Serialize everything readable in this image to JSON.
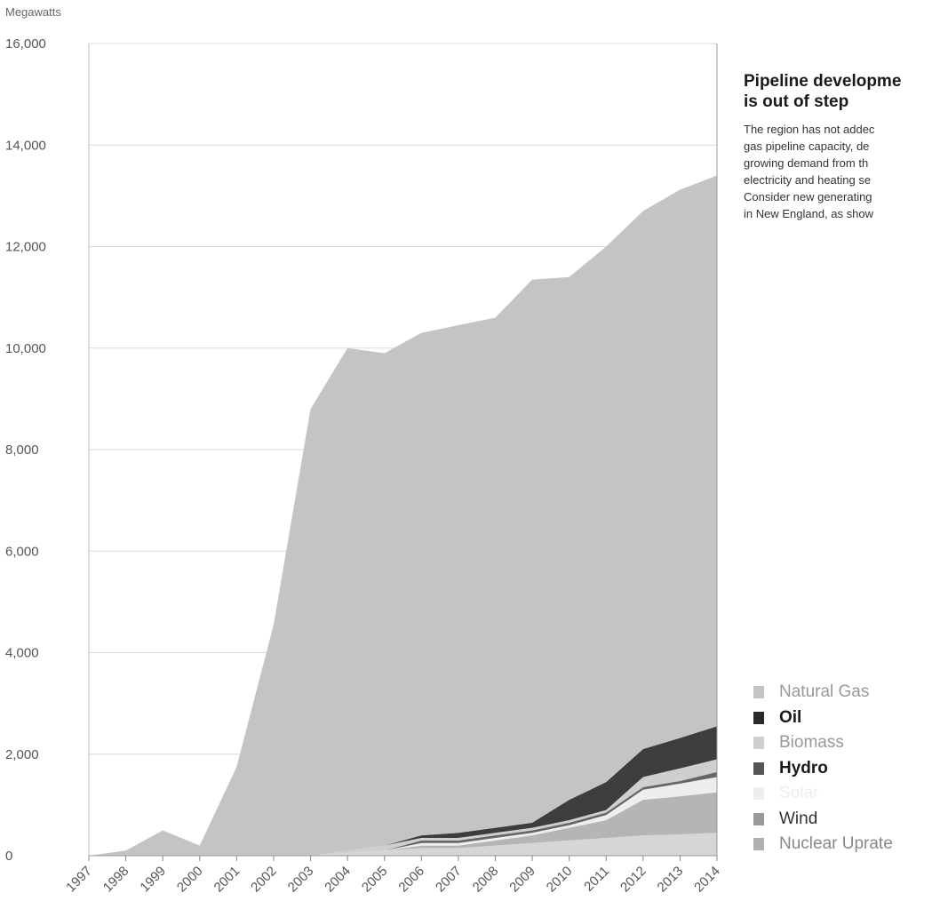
{
  "chart_data": {
    "type": "area",
    "stacked": true,
    "ylabel": "Megawatts",
    "ylim": [
      0,
      16000
    ],
    "yticks": [
      0,
      2000,
      4000,
      6000,
      8000,
      10000,
      12000,
      14000,
      16000
    ],
    "ytick_labels": [
      "0",
      "2,000",
      "4,000",
      "6,000",
      "8,000",
      "10,000",
      "12,000",
      "14,000",
      "16,000"
    ],
    "grid": true,
    "x": [
      "1997",
      "1998",
      "1999",
      "2000",
      "2001",
      "2002",
      "2003",
      "2004",
      "2005",
      "2006",
      "2007",
      "2008",
      "2009",
      "2010",
      "2011",
      "2012",
      "2013",
      "2014"
    ],
    "legend_position": "right",
    "series": [
      {
        "name": "Nuclear Uprate",
        "color": "#d6d6d6",
        "values": [
          0,
          0,
          0,
          0,
          0,
          0,
          0,
          50,
          100,
          150,
          150,
          200,
          250,
          300,
          350,
          400,
          420,
          450
        ]
      },
      {
        "name": "Wind",
        "color": "#b5b5b5",
        "values": [
          0,
          0,
          0,
          0,
          0,
          0,
          0,
          0,
          0,
          50,
          50,
          100,
          150,
          250,
          350,
          700,
          750,
          800
        ]
      },
      {
        "name": "Solar",
        "color": "#eeeeee",
        "values": [
          0,
          0,
          0,
          0,
          0,
          0,
          0,
          0,
          0,
          50,
          50,
          50,
          50,
          50,
          100,
          200,
          250,
          300
        ]
      },
      {
        "name": "Hydro",
        "color": "#666666",
        "values": [
          0,
          0,
          0,
          0,
          0,
          0,
          0,
          0,
          0,
          50,
          50,
          50,
          50,
          50,
          50,
          50,
          50,
          100
        ]
      },
      {
        "name": "Biomass",
        "color": "#cfcfcf",
        "values": [
          0,
          0,
          0,
          0,
          0,
          0,
          0,
          50,
          100,
          50,
          50,
          50,
          50,
          50,
          50,
          200,
          250,
          250
        ]
      },
      {
        "name": "Oil",
        "color": "#3d3d3d",
        "values": [
          0,
          0,
          0,
          0,
          0,
          0,
          0,
          0,
          0,
          50,
          100,
          100,
          100,
          400,
          550,
          550,
          600,
          650
        ]
      },
      {
        "name": "Natural Gas",
        "color": "#c4c4c4",
        "values": [
          0,
          100,
          500,
          200,
          1750,
          4550,
          8800,
          9900,
          9700,
          9900,
          10000,
          10050,
          10700,
          10300,
          10550,
          10600,
          10800,
          10850
        ]
      }
    ]
  },
  "sidebar": {
    "title_line1": "Pipeline developme",
    "title_line2": "is out of step",
    "body_lines": [
      "The region has not addec",
      "gas pipeline capacity, de",
      "growing demand from th",
      "electricity and heating se",
      "Consider new generating",
      "in New England, as show"
    ]
  },
  "legend": {
    "items": [
      {
        "label": "Natural Gas",
        "color": "#c4c4c4",
        "text_color": "#999999",
        "bold": false
      },
      {
        "label": "Oil",
        "color": "#2a2a2a",
        "text_color": "#1a1a1a",
        "bold": true
      },
      {
        "label": "Biomass",
        "color": "#cfcfcf",
        "text_color": "#999999",
        "bold": false
      },
      {
        "label": "Hydro",
        "color": "#555555",
        "text_color": "#1a1a1a",
        "bold": true
      },
      {
        "label": "Solar",
        "color": "#eeeeee",
        "text_color": "#eeeeee",
        "bold": false
      },
      {
        "label": "Wind",
        "color": "#9a9a9a",
        "text_color": "#333333",
        "bold": false
      },
      {
        "label": "Nuclear Uprate",
        "color": "#b0b0b0",
        "text_color": "#888888",
        "bold": false
      }
    ]
  }
}
